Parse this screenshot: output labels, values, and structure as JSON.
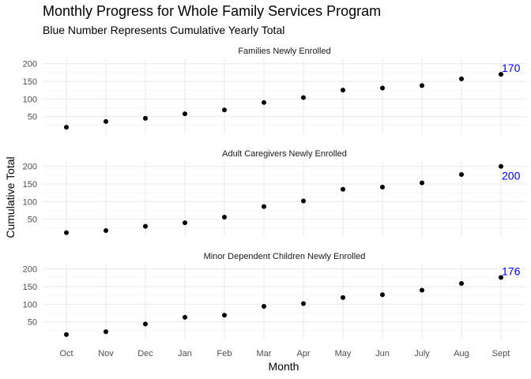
{
  "chart_data": {
    "type": "scatter",
    "title": "Monthly Progress for Whole Family Services Program",
    "subtitle": "Blue Number Represents Cumulative Yearly Total",
    "xlabel": "Month",
    "ylabel": "Cumulative Total",
    "categories": [
      "Oct",
      "Nov",
      "Dec",
      "Jan",
      "Feb",
      "Mar",
      "Apr",
      "May",
      "Jun",
      "July",
      "Aug",
      "Sept"
    ],
    "ylim": [
      0,
      215
    ],
    "yticks": [
      50,
      100,
      150,
      200
    ],
    "grid": true,
    "point_color": "#000000",
    "total_color": "#0000ff",
    "panels": [
      {
        "name": "Families Newly Enrolled",
        "values": [
          20,
          36,
          45,
          58,
          69,
          90,
          104,
          125,
          131,
          138,
          157,
          170
        ],
        "total": "170"
      },
      {
        "name": "Adult Caregivers Newly Enrolled",
        "values": [
          12,
          18,
          30,
          40,
          56,
          86,
          102,
          135,
          141,
          153,
          177,
          200
        ],
        "total": "200"
      },
      {
        "name": "Minor Dependent Children Newly Enrolled",
        "values": [
          14,
          22,
          44,
          63,
          69,
          94,
          102,
          119,
          127,
          140,
          159,
          176
        ],
        "total": "176"
      }
    ]
  }
}
